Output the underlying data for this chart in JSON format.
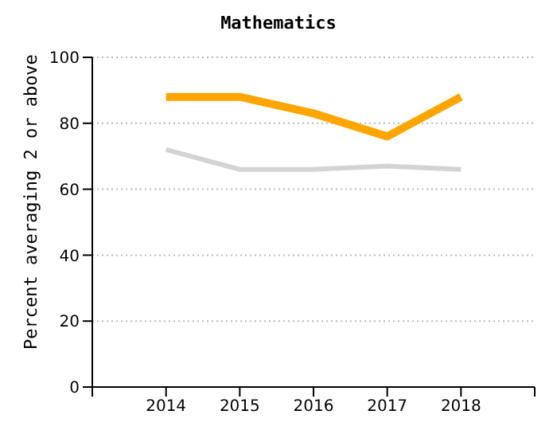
{
  "chart_data": {
    "type": "line",
    "title": "Mathematics",
    "ylabel": "Percent averaging 2 or above",
    "x": [
      2014,
      2015,
      2016,
      2017,
      2018
    ],
    "series": [
      {
        "color": "#ffa500",
        "values": [
          88,
          88,
          83,
          76,
          88
        ]
      },
      {
        "color": "#d3d3d3",
        "values": [
          72,
          66,
          66,
          67,
          66
        ]
      }
    ],
    "xlim": [
      2013,
      2019
    ],
    "xticks": [
      {
        "value": 2013,
        "label": null
      },
      2014,
      2015,
      2016,
      2017,
      2018,
      {
        "value": 2019,
        "label": null
      }
    ],
    "ylim": [
      0,
      100
    ],
    "yticks": [
      0,
      20,
      40,
      60,
      80,
      100
    ],
    "grid": "y",
    "legend": false,
    "marker": "none",
    "line_style": "solid"
  }
}
